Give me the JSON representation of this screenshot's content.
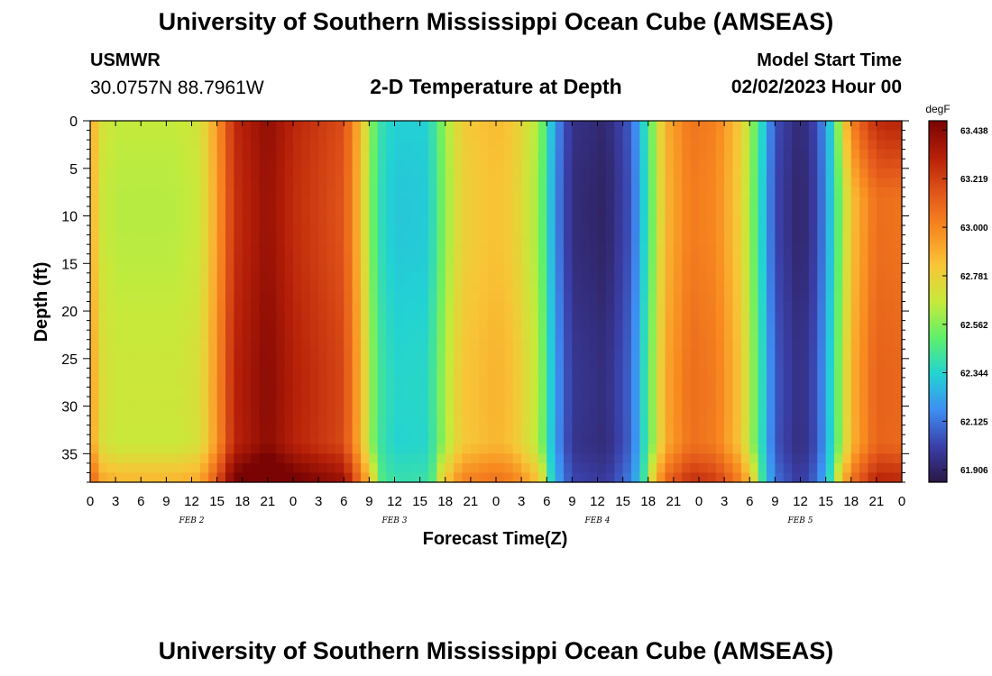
{
  "header": {
    "title": "University of Southern Mississippi Ocean Cube (AMSEAS)",
    "station_name": "USMWR",
    "station_coords": "30.0757N  88.7961W",
    "plot_title": "2-D Temperature at Depth",
    "start_label": "Model Start Time",
    "start_value": "02/02/2023 Hour 00"
  },
  "footer": {
    "title": "University of Southern Mississippi Ocean Cube (AMSEAS)"
  },
  "chart_data": {
    "type": "heatmap",
    "title": "2-D Temperature at Depth",
    "xlabel": "Forecast Time(Z)",
    "ylabel": "Depth (ft)",
    "colorbar_label": "degF",
    "x_hours_range": [
      0,
      96
    ],
    "x_tick_labels": [
      "0",
      "3",
      "6",
      "9",
      "12",
      "15",
      "18",
      "21",
      "0",
      "3",
      "6",
      "9",
      "12",
      "15",
      "18",
      "21",
      "0",
      "3",
      "6",
      "9",
      "12",
      "15",
      "18",
      "21",
      "0",
      "3",
      "6",
      "9",
      "12",
      "15",
      "18",
      "21",
      "0"
    ],
    "date_labels": [
      "FEB 2",
      "FEB 3",
      "FEB 4",
      "FEB 5"
    ],
    "y_range": [
      0,
      38
    ],
    "y_ticks": [
      0,
      5,
      10,
      15,
      20,
      25,
      30,
      35
    ],
    "colorbar_ticks": [
      "63.438",
      "63.219",
      "63.000",
      "62.781",
      "62.562",
      "62.344",
      "62.125",
      "61.906"
    ],
    "colorbar_range": [
      61.85,
      63.48
    ],
    "palette": [
      "#2b1745",
      "#3a3fa8",
      "#3e8ef3",
      "#22d3d3",
      "#5ff06a",
      "#c7ea3a",
      "#f8c537",
      "#f88a20",
      "#e2561a",
      "#b51f08",
      "#7a0403"
    ],
    "temperature_profile": [
      {
        "hour": 0,
        "degF": 62.98
      },
      {
        "hour": 1,
        "degF": 62.72
      },
      {
        "hour": 3,
        "degF": 62.66
      },
      {
        "hour": 10,
        "degF": 62.66
      },
      {
        "hour": 13,
        "degF": 62.7
      },
      {
        "hour": 15,
        "degF": 62.95
      },
      {
        "hour": 17,
        "degF": 63.28
      },
      {
        "hour": 21,
        "degF": 63.42
      },
      {
        "hour": 24,
        "degF": 63.3
      },
      {
        "hour": 30,
        "degF": 63.18
      },
      {
        "hour": 32,
        "degF": 62.85
      },
      {
        "hour": 34,
        "degF": 62.42
      },
      {
        "hour": 36,
        "degF": 62.33
      },
      {
        "hour": 40,
        "degF": 62.34
      },
      {
        "hour": 42,
        "degF": 62.6
      },
      {
        "hour": 44,
        "degF": 62.8
      },
      {
        "hour": 48,
        "degF": 62.86
      },
      {
        "hour": 50,
        "degF": 62.82
      },
      {
        "hour": 53,
        "degF": 62.62
      },
      {
        "hour": 55,
        "degF": 62.2
      },
      {
        "hour": 57,
        "degF": 61.96
      },
      {
        "hour": 61,
        "degF": 61.92
      },
      {
        "hour": 64,
        "degF": 62.08
      },
      {
        "hour": 66,
        "degF": 62.45
      },
      {
        "hour": 68,
        "degF": 62.88
      },
      {
        "hour": 71,
        "degF": 63.06
      },
      {
        "hour": 74,
        "degF": 63.02
      },
      {
        "hour": 77,
        "degF": 62.8
      },
      {
        "hour": 79,
        "degF": 62.45
      },
      {
        "hour": 81,
        "degF": 62.05
      },
      {
        "hour": 84,
        "degF": 61.92
      },
      {
        "hour": 86,
        "degF": 62.04
      },
      {
        "hour": 88,
        "degF": 62.4
      },
      {
        "hour": 90,
        "degF": 62.85
      },
      {
        "hour": 93,
        "degF": 63.1
      },
      {
        "hour": 96,
        "degF": 63.08
      }
    ],
    "surface_feature": {
      "start_hour": 88,
      "peak_hour": 94,
      "degF": 63.3,
      "max_depth": 8
    },
    "bottom_layer": {
      "depth_start": 34,
      "depth_end": 38
    },
    "grid": false,
    "legend": "colorbar-right"
  }
}
